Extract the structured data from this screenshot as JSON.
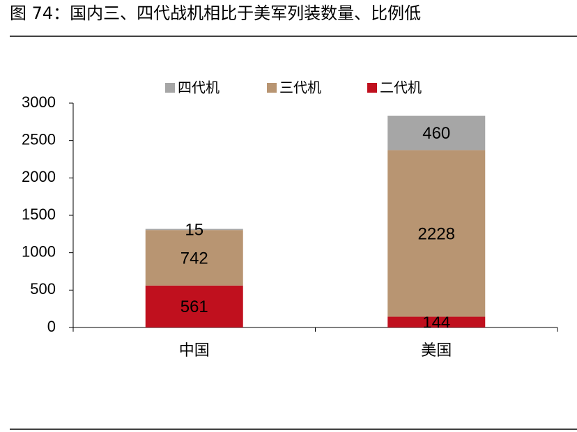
{
  "chart_data": {
    "type": "stacked_bar",
    "title": "图 74：国内三、四代战机相比于美军列装数量、比例低",
    "categories": [
      "中国",
      "美国"
    ],
    "series": [
      {
        "name": "四代机",
        "color": "#a6a6a6",
        "values": [
          15,
          460
        ]
      },
      {
        "name": "三代机",
        "color": "#b89572",
        "values": [
          742,
          2228
        ]
      },
      {
        "name": "二代机",
        "color": "#c0101e",
        "values": [
          561,
          144
        ]
      }
    ],
    "ylim": [
      0,
      3000
    ],
    "yticks": [
      0,
      500,
      1000,
      1500,
      2000,
      2500,
      3000
    ]
  }
}
